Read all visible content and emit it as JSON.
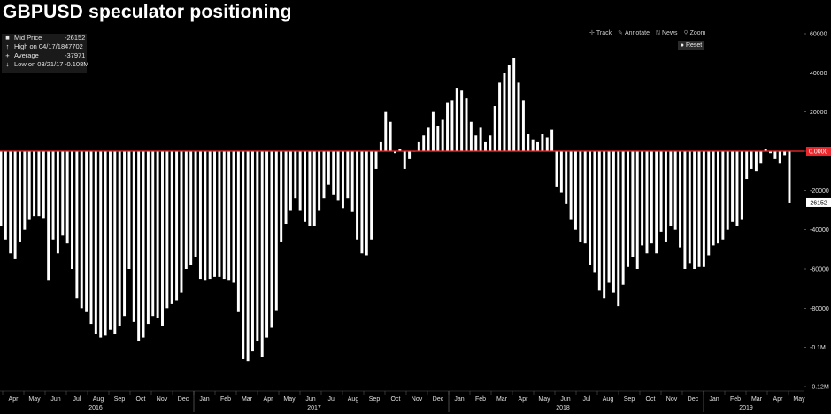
{
  "title": "GBPUSD speculator positioning",
  "legend": [
    {
      "symbol": "■",
      "label": "Mid Price",
      "value": "-26152"
    },
    {
      "symbol": "↑",
      "label": "High on 04/17/18",
      "value": "47702"
    },
    {
      "symbol": "+",
      "label": "Average",
      "value": "-37971"
    },
    {
      "symbol": "↓",
      "label": "Low on 03/21/17",
      "value": "-0.108M"
    }
  ],
  "toolbar": {
    "track": "Track",
    "annotate": "Annotate",
    "news": "News",
    "zoom": "Zoom",
    "reset": "Reset",
    "track_icon": "crosshair-icon",
    "annotate_icon": "pencil-icon",
    "news_icon": "news-icon",
    "zoom_icon": "magnifier-icon",
    "reset_icon": "reset-icon"
  },
  "colors": {
    "background": "#000000",
    "bars": "#ffffff",
    "zero_line": "#ff2a2a",
    "zero_tag": "#e8262b",
    "last_tag": "#ffffff"
  },
  "chart_data": {
    "type": "bar",
    "title": "GBPUSD speculator positioning",
    "ylim": [
      -120000,
      60000
    ],
    "yticks": [
      60000,
      40000,
      20000,
      0,
      -20000,
      -40000,
      -60000,
      -80000,
      -100000,
      -120000
    ],
    "ytick_labels": [
      "60000",
      "40000",
      "20000",
      "0.0000",
      "-20000",
      "-40000",
      "-60000",
      "-80000",
      "-0.1M",
      "-0.12M"
    ],
    "x_month_labels": [
      "Apr",
      "May",
      "Jun",
      "Jul",
      "Aug",
      "Sep",
      "Oct",
      "Nov",
      "Dec",
      "Jan",
      "Feb",
      "Mar",
      "Apr",
      "May",
      "Jun",
      "Jul",
      "Aug",
      "Sep",
      "Oct",
      "Nov",
      "Dec",
      "Jan",
      "Feb",
      "Mar",
      "Apr",
      "May",
      "Jun",
      "Jul",
      "Aug",
      "Sep",
      "Oct",
      "Nov",
      "Dec",
      "Jan",
      "Feb",
      "Mar",
      "Apr",
      "May"
    ],
    "x_year_labels": [
      "2016",
      "2017",
      "2018",
      "2019"
    ],
    "last_value_label": "-26152",
    "grid": false,
    "values": [
      -38000,
      -45000,
      -52000,
      -55000,
      -46000,
      -40000,
      -35000,
      -33000,
      -33000,
      -34000,
      -66000,
      -45000,
      -52000,
      -43000,
      -47000,
      -60000,
      -75000,
      -80000,
      -82000,
      -88000,
      -93000,
      -95000,
      -94000,
      -91000,
      -93000,
      -89000,
      -84000,
      -60000,
      -87000,
      -97000,
      -95000,
      -88000,
      -84000,
      -85000,
      -89000,
      -80000,
      -78000,
      -76000,
      -72000,
      -60000,
      -58000,
      -54000,
      -65000,
      -66000,
      -65000,
      -64000,
      -64000,
      -65000,
      -66000,
      -67000,
      -82000,
      -106000,
      -107000,
      -102000,
      -97000,
      -105000,
      -95000,
      -90000,
      -81000,
      -46000,
      -37000,
      -30000,
      -24000,
      -30000,
      -36000,
      -38000,
      -38000,
      -30000,
      -24000,
      -17000,
      -22000,
      -25000,
      -29000,
      -24000,
      -31000,
      -45000,
      -52000,
      -53000,
      -45000,
      -9000,
      5000,
      20000,
      15000,
      -1000,
      1000,
      -9000,
      -4000,
      0,
      5000,
      8000,
      12000,
      20000,
      13000,
      16000,
      25000,
      26000,
      32000,
      31000,
      27000,
      15000,
      8000,
      12000,
      5000,
      8000,
      23000,
      35000,
      40000,
      44000,
      47702,
      35000,
      26000,
      9000,
      6000,
      5000,
      9000,
      7000,
      11000,
      -18000,
      -21000,
      -27000,
      -35000,
      -40000,
      -46000,
      -47000,
      -58000,
      -62000,
      -71000,
      -75000,
      -67000,
      -72000,
      -79000,
      -68000,
      -59000,
      -54000,
      -60000,
      -48000,
      -52000,
      -47000,
      -52000,
      -41000,
      -46000,
      -38000,
      -40000,
      -49000,
      -60000,
      -57000,
      -60000,
      -59000,
      -59000,
      -53000,
      -48000,
      -47000,
      -45000,
      -40000,
      -36000,
      -38000,
      -35000,
      -14000,
      -9000,
      -10000,
      -6000,
      1000,
      -1000,
      -4000,
      -6000,
      -2000,
      -26152
    ]
  }
}
